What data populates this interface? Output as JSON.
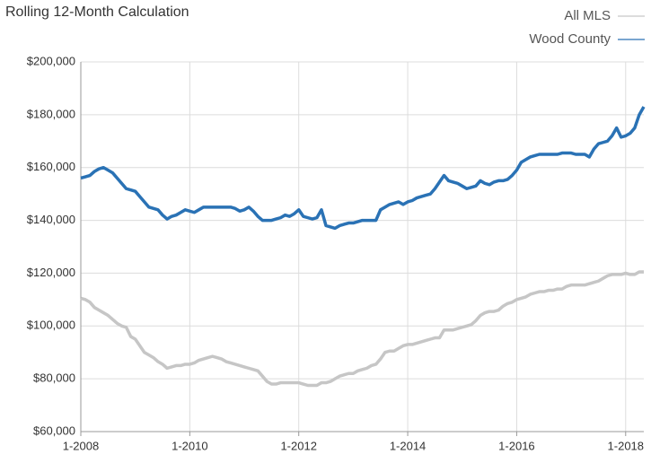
{
  "chart_data": {
    "type": "line",
    "subtitle": "Rolling 12-Month Calculation",
    "categories": [
      "1-2008",
      null,
      null,
      null,
      null,
      null,
      null,
      null,
      null,
      null,
      null,
      null,
      null,
      null,
      null,
      null,
      null,
      null,
      null,
      null,
      null,
      null,
      null,
      null,
      "1-2010",
      null,
      null,
      null,
      null,
      null,
      null,
      null,
      null,
      null,
      null,
      null,
      null,
      null,
      null,
      null,
      null,
      null,
      null,
      null,
      null,
      null,
      null,
      null,
      "1-2012",
      null,
      null,
      null,
      null,
      null,
      null,
      null,
      null,
      null,
      null,
      null,
      null,
      null,
      null,
      null,
      null,
      null,
      null,
      null,
      null,
      null,
      null,
      null,
      "1-2014",
      null,
      null,
      null,
      null,
      null,
      null,
      null,
      null,
      null,
      null,
      null,
      null,
      null,
      null,
      null,
      null,
      null,
      null,
      null,
      null,
      null,
      null,
      null,
      "1-2016",
      null,
      null,
      null,
      null,
      null,
      null,
      null,
      null,
      null,
      null,
      null,
      null,
      null,
      null,
      null,
      null,
      null,
      null,
      null,
      null,
      null,
      null,
      null,
      "1-2018",
      null,
      null,
      null,
      null
    ],
    "series": [
      {
        "name": "All MLS",
        "color": "#c6c6c6",
        "values": [
          110500,
          110000,
          109000,
          107000,
          106000,
          105000,
          104000,
          102500,
          101000,
          100000,
          99500,
          96000,
          95000,
          92500,
          90000,
          89000,
          88000,
          86500,
          85500,
          84000,
          84500,
          85000,
          85000,
          85500,
          85500,
          86000,
          87000,
          87500,
          88000,
          88500,
          88000,
          87500,
          86500,
          86000,
          85500,
          85000,
          84500,
          84000,
          83500,
          83000,
          81000,
          79000,
          78000,
          78000,
          78500,
          78500,
          78500,
          78500,
          78500,
          78000,
          77500,
          77500,
          77500,
          78500,
          78500,
          79000,
          80000,
          81000,
          81500,
          82000,
          82000,
          83000,
          83500,
          84000,
          85000,
          85500,
          87500,
          90000,
          90500,
          90500,
          91500,
          92500,
          93000,
          93000,
          93500,
          94000,
          94500,
          95000,
          95500,
          95500,
          98500,
          98500,
          98500,
          99000,
          99500,
          100000,
          100500,
          102000,
          104000,
          105000,
          105500,
          105500,
          106000,
          107500,
          108500,
          109000,
          110000,
          110500,
          111000,
          112000,
          112500,
          113000,
          113000,
          113500,
          113500,
          114000,
          114000,
          115000,
          115500,
          115500,
          115500,
          115500,
          116000,
          116500,
          117000,
          118000,
          119000,
          119500,
          119500,
          119500,
          120000,
          119500,
          119500,
          120500,
          120500
        ]
      },
      {
        "name": "Wood County",
        "color": "#2a72b5",
        "values": [
          156000,
          156500,
          157000,
          158500,
          159500,
          160000,
          159000,
          158000,
          156000,
          154000,
          152000,
          151500,
          151000,
          149000,
          147000,
          145000,
          144500,
          144000,
          142000,
          140500,
          141500,
          142000,
          143000,
          144000,
          143500,
          143000,
          144000,
          145000,
          145000,
          145000,
          145000,
          145000,
          145000,
          145000,
          144500,
          143500,
          144000,
          145000,
          143500,
          141500,
          140000,
          140000,
          140000,
          140500,
          141000,
          142000,
          141500,
          142500,
          144000,
          141500,
          141000,
          140500,
          141000,
          144000,
          138000,
          137500,
          137000,
          138000,
          138500,
          139000,
          139000,
          139500,
          140000,
          140000,
          140000,
          140000,
          144000,
          145000,
          146000,
          146500,
          147000,
          146000,
          147000,
          147500,
          148500,
          149000,
          149500,
          150000,
          152000,
          154500,
          157000,
          155000,
          154500,
          154000,
          153000,
          152000,
          152500,
          153000,
          155000,
          154000,
          153500,
          154500,
          155000,
          155000,
          155500,
          157000,
          159000,
          162000,
          163000,
          164000,
          164500,
          165000,
          165000,
          165000,
          165000,
          165000,
          165500,
          165500,
          165500,
          165000,
          165000,
          165000,
          164000,
          167000,
          169000,
          169500,
          170000,
          172000,
          175000,
          171500,
          172000,
          173000,
          175000,
          180000,
          183000
        ]
      }
    ],
    "ylim": [
      60000,
      200000
    ],
    "yticks": [
      {
        "value": 60000,
        "label": "$60,000"
      },
      {
        "value": 80000,
        "label": "$80,000"
      },
      {
        "value": 100000,
        "label": "$100,000"
      },
      {
        "value": 120000,
        "label": "$120,000"
      },
      {
        "value": 140000,
        "label": "$140,000"
      },
      {
        "value": 160000,
        "label": "$160,000"
      },
      {
        "value": 180000,
        "label": "$180,000"
      },
      {
        "value": 200000,
        "label": "$200,000"
      }
    ],
    "grid": true,
    "legend": "top-right"
  }
}
